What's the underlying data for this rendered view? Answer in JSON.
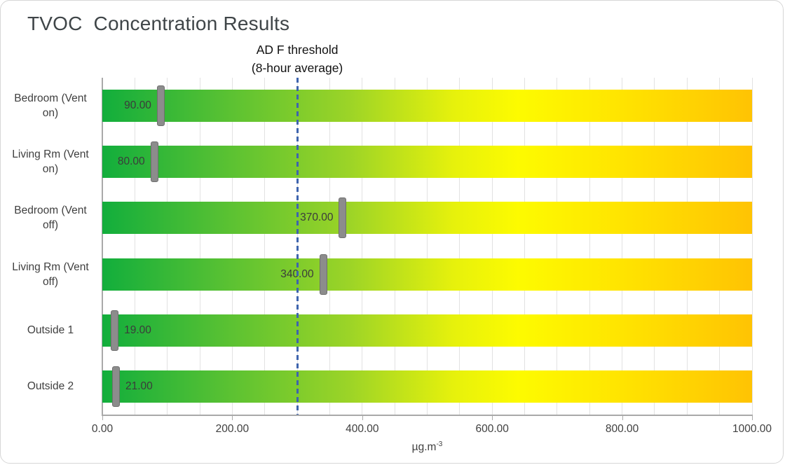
{
  "title": "TVOC  Concentration Results",
  "annotation": {
    "line1": "AD F threshold",
    "line2": "(8-hour average)"
  },
  "axis_unit": {
    "base": "µg.m",
    "exponent": "-3"
  },
  "chart_data": {
    "type": "bar",
    "orientation": "horizontal",
    "title": "TVOC  Concentration Results",
    "xlabel": "µg.m-3",
    "ylabel": "",
    "categories": [
      "Bedroom (Vent on)",
      "Living Rm (Vent on)",
      "Bedroom (Vent off)",
      "Living Rm (Vent off)",
      "Outside 1",
      "Outside 2"
    ],
    "values": [
      90,
      80,
      370,
      340,
      19,
      21
    ],
    "value_labels": [
      "90.00",
      "80.00",
      "370.00",
      "340.00",
      "19.00",
      "21.00"
    ],
    "xlim": [
      0,
      1000
    ],
    "x_ticks": [
      0,
      200,
      400,
      600,
      800,
      1000
    ],
    "x_tick_labels": [
      "0.00",
      "200.00",
      "400.00",
      "600.00",
      "800.00",
      "1000.00"
    ],
    "minor_grid_step": 50,
    "grid": "vertical-minor",
    "legend": null,
    "threshold": {
      "value": 300,
      "label": "AD F threshold (8-hour average)",
      "style": "dashed"
    },
    "bar_style": "full-width gradient track with gray marker at value"
  },
  "colors": {
    "bar_gradient": [
      "#12AE3C 0%",
      "#55C033 18%",
      "#9CD427 38%",
      "#E6F10C 54%",
      "#FDFB00 64%",
      "#FFE400 80%",
      "#FFC303 100%"
    ],
    "marker_fill": "#8C8C8C",
    "marker_border": "#6F6F6F",
    "threshold_line": "#3E64AE",
    "gridline": "#E2E2E2",
    "axis_line": "#A9A9A9",
    "text": "#3F3F3F",
    "title_text": "#3F4548"
  }
}
